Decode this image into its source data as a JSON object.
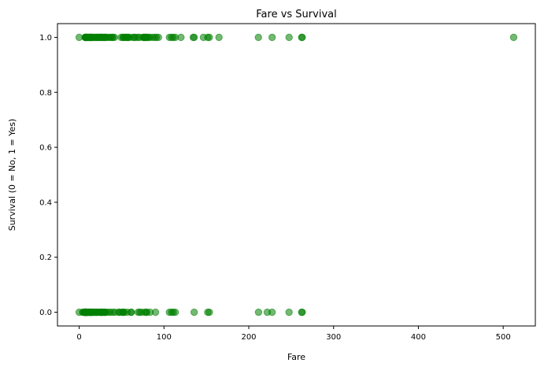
{
  "chart_data": {
    "type": "scatter",
    "title": "Fare vs Survival",
    "xlabel": "Fare",
    "ylabel": "Survival (0 = No, 1 = Yes)",
    "xlim": [
      -25.6,
      537.9
    ],
    "ylim": [
      -0.05,
      1.05
    ],
    "x_ticks": [
      0,
      100,
      200,
      300,
      400,
      500
    ],
    "y_ticks": [
      0.0,
      0.2,
      0.4,
      0.6,
      0.8,
      1.0
    ],
    "x_tick_labels": [
      "0",
      "100",
      "200",
      "300",
      "400",
      "500"
    ],
    "y_tick_labels": [
      "0.0",
      "0.2",
      "0.4",
      "0.6",
      "0.8",
      "1.0"
    ],
    "grid": false,
    "marker_color": "#008000",
    "marker_alpha": 0.55,
    "series": [
      {
        "values": [
          {
            "x": 0,
            "y": 0
          },
          {
            "x": 4,
            "y": 0
          },
          {
            "x": 5,
            "y": 0
          },
          {
            "x": 6.2,
            "y": 0
          },
          {
            "x": 6.5,
            "y": 0
          },
          {
            "x": 6.9,
            "y": 0
          },
          {
            "x": 7.05,
            "y": 0
          },
          {
            "x": 7.13,
            "y": 0
          },
          {
            "x": 7.23,
            "y": 0
          },
          {
            "x": 7.25,
            "y": 0
          },
          {
            "x": 7.5,
            "y": 0
          },
          {
            "x": 7.55,
            "y": 0
          },
          {
            "x": 7.65,
            "y": 0
          },
          {
            "x": 7.73,
            "y": 0
          },
          {
            "x": 7.75,
            "y": 0
          },
          {
            "x": 7.78,
            "y": 0
          },
          {
            "x": 7.8,
            "y": 0
          },
          {
            "x": 7.85,
            "y": 0
          },
          {
            "x": 7.88,
            "y": 0
          },
          {
            "x": 7.9,
            "y": 0
          },
          {
            "x": 8.05,
            "y": 0
          },
          {
            "x": 8.1,
            "y": 0
          },
          {
            "x": 8.3,
            "y": 0
          },
          {
            "x": 8.46,
            "y": 0
          },
          {
            "x": 8.66,
            "y": 0
          },
          {
            "x": 9,
            "y": 0
          },
          {
            "x": 9.5,
            "y": 0
          },
          {
            "x": 9.8,
            "y": 0
          },
          {
            "x": 10.5,
            "y": 0
          },
          {
            "x": 11.1,
            "y": 0
          },
          {
            "x": 11.5,
            "y": 0
          },
          {
            "x": 12.3,
            "y": 0
          },
          {
            "x": 12.5,
            "y": 0
          },
          {
            "x": 13,
            "y": 0
          },
          {
            "x": 13.5,
            "y": 0
          },
          {
            "x": 14.1,
            "y": 0
          },
          {
            "x": 14.5,
            "y": 0
          },
          {
            "x": 15,
            "y": 0
          },
          {
            "x": 15.5,
            "y": 0
          },
          {
            "x": 16.1,
            "y": 0
          },
          {
            "x": 17.8,
            "y": 0
          },
          {
            "x": 18,
            "y": 0
          },
          {
            "x": 19.5,
            "y": 0
          },
          {
            "x": 20.2,
            "y": 0
          },
          {
            "x": 21,
            "y": 0
          },
          {
            "x": 21.1,
            "y": 0
          },
          {
            "x": 23.45,
            "y": 0
          },
          {
            "x": 24.15,
            "y": 0
          },
          {
            "x": 25.5,
            "y": 0
          },
          {
            "x": 26,
            "y": 0
          },
          {
            "x": 26.55,
            "y": 0
          },
          {
            "x": 27,
            "y": 0
          },
          {
            "x": 27.9,
            "y": 0
          },
          {
            "x": 29.1,
            "y": 0
          },
          {
            "x": 30,
            "y": 0
          },
          {
            "x": 31,
            "y": 0
          },
          {
            "x": 31.3,
            "y": 0
          },
          {
            "x": 34.4,
            "y": 0
          },
          {
            "x": 36.75,
            "y": 0
          },
          {
            "x": 39.7,
            "y": 0
          },
          {
            "x": 42.4,
            "y": 0
          },
          {
            "x": 46.9,
            "y": 0
          },
          {
            "x": 47.1,
            "y": 0
          },
          {
            "x": 50,
            "y": 0
          },
          {
            "x": 51.9,
            "y": 0
          },
          {
            "x": 52,
            "y": 0
          },
          {
            "x": 53.1,
            "y": 0
          },
          {
            "x": 56.5,
            "y": 0
          },
          {
            "x": 61.2,
            "y": 0
          },
          {
            "x": 61.4,
            "y": 0
          },
          {
            "x": 69.55,
            "y": 0
          },
          {
            "x": 71.3,
            "y": 0
          },
          {
            "x": 73.5,
            "y": 0
          },
          {
            "x": 77.3,
            "y": 0
          },
          {
            "x": 79.2,
            "y": 0
          },
          {
            "x": 79.65,
            "y": 0
          },
          {
            "x": 83.5,
            "y": 0
          },
          {
            "x": 90,
            "y": 0
          },
          {
            "x": 106.4,
            "y": 0
          },
          {
            "x": 108.9,
            "y": 0
          },
          {
            "x": 110.9,
            "y": 0
          },
          {
            "x": 113.3,
            "y": 0
          },
          {
            "x": 135.6,
            "y": 0
          },
          {
            "x": 151.6,
            "y": 0
          },
          {
            "x": 153.5,
            "y": 0
          },
          {
            "x": 211.5,
            "y": 0
          },
          {
            "x": 221.8,
            "y": 0
          },
          {
            "x": 227.5,
            "y": 0
          },
          {
            "x": 247.5,
            "y": 0
          },
          {
            "x": 262.4,
            "y": 0
          },
          {
            "x": 263,
            "y": 0
          },
          {
            "x": 0,
            "y": 1
          },
          {
            "x": 6.95,
            "y": 1
          },
          {
            "x": 7.23,
            "y": 1
          },
          {
            "x": 7.75,
            "y": 1
          },
          {
            "x": 7.8,
            "y": 1
          },
          {
            "x": 7.9,
            "y": 1
          },
          {
            "x": 8.05,
            "y": 1
          },
          {
            "x": 8.5,
            "y": 1
          },
          {
            "x": 9.35,
            "y": 1
          },
          {
            "x": 9.84,
            "y": 1
          },
          {
            "x": 10.5,
            "y": 1
          },
          {
            "x": 11.1,
            "y": 1
          },
          {
            "x": 12.3,
            "y": 1
          },
          {
            "x": 12.48,
            "y": 1
          },
          {
            "x": 13,
            "y": 1
          },
          {
            "x": 13.5,
            "y": 1
          },
          {
            "x": 13.8,
            "y": 1
          },
          {
            "x": 14.45,
            "y": 1
          },
          {
            "x": 15.25,
            "y": 1
          },
          {
            "x": 15.9,
            "y": 1
          },
          {
            "x": 16.7,
            "y": 1
          },
          {
            "x": 18.75,
            "y": 1
          },
          {
            "x": 19.25,
            "y": 1
          },
          {
            "x": 20.5,
            "y": 1
          },
          {
            "x": 21,
            "y": 1
          },
          {
            "x": 22.36,
            "y": 1
          },
          {
            "x": 23.25,
            "y": 1
          },
          {
            "x": 24,
            "y": 1
          },
          {
            "x": 25.9,
            "y": 1
          },
          {
            "x": 26.25,
            "y": 1
          },
          {
            "x": 26.55,
            "y": 1
          },
          {
            "x": 27.72,
            "y": 1
          },
          {
            "x": 29,
            "y": 1
          },
          {
            "x": 30.07,
            "y": 1
          },
          {
            "x": 30.5,
            "y": 1
          },
          {
            "x": 31.39,
            "y": 1
          },
          {
            "x": 33,
            "y": 1
          },
          {
            "x": 35.5,
            "y": 1
          },
          {
            "x": 37,
            "y": 1
          },
          {
            "x": 39,
            "y": 1
          },
          {
            "x": 39.69,
            "y": 1
          },
          {
            "x": 41.58,
            "y": 1
          },
          {
            "x": 49.5,
            "y": 1
          },
          {
            "x": 51.48,
            "y": 1
          },
          {
            "x": 52.55,
            "y": 1
          },
          {
            "x": 53.1,
            "y": 1
          },
          {
            "x": 55,
            "y": 1
          },
          {
            "x": 55.9,
            "y": 1
          },
          {
            "x": 57,
            "y": 1
          },
          {
            "x": 57.98,
            "y": 1
          },
          {
            "x": 59.4,
            "y": 1
          },
          {
            "x": 63.36,
            "y": 1
          },
          {
            "x": 65,
            "y": 1
          },
          {
            "x": 66.6,
            "y": 1
          },
          {
            "x": 69.3,
            "y": 1
          },
          {
            "x": 71.28,
            "y": 1
          },
          {
            "x": 75.25,
            "y": 1
          },
          {
            "x": 76.29,
            "y": 1
          },
          {
            "x": 76.73,
            "y": 1
          },
          {
            "x": 77.96,
            "y": 1
          },
          {
            "x": 78.27,
            "y": 1
          },
          {
            "x": 79.2,
            "y": 1
          },
          {
            "x": 80,
            "y": 1
          },
          {
            "x": 81.86,
            "y": 1
          },
          {
            "x": 83.16,
            "y": 1
          },
          {
            "x": 86.5,
            "y": 1
          },
          {
            "x": 89.1,
            "y": 1
          },
          {
            "x": 91.08,
            "y": 1
          },
          {
            "x": 93.5,
            "y": 1
          },
          {
            "x": 106.43,
            "y": 1
          },
          {
            "x": 108.9,
            "y": 1
          },
          {
            "x": 110.88,
            "y": 1
          },
          {
            "x": 113.28,
            "y": 1
          },
          {
            "x": 120,
            "y": 1
          },
          {
            "x": 134.5,
            "y": 1
          },
          {
            "x": 135.63,
            "y": 1
          },
          {
            "x": 146.52,
            "y": 1
          },
          {
            "x": 151.55,
            "y": 1
          },
          {
            "x": 153.46,
            "y": 1
          },
          {
            "x": 164.87,
            "y": 1
          },
          {
            "x": 211.34,
            "y": 1
          },
          {
            "x": 227.53,
            "y": 1
          },
          {
            "x": 247.52,
            "y": 1
          },
          {
            "x": 262.38,
            "y": 1
          },
          {
            "x": 263,
            "y": 1
          },
          {
            "x": 512.33,
            "y": 1
          }
        ]
      }
    ]
  }
}
